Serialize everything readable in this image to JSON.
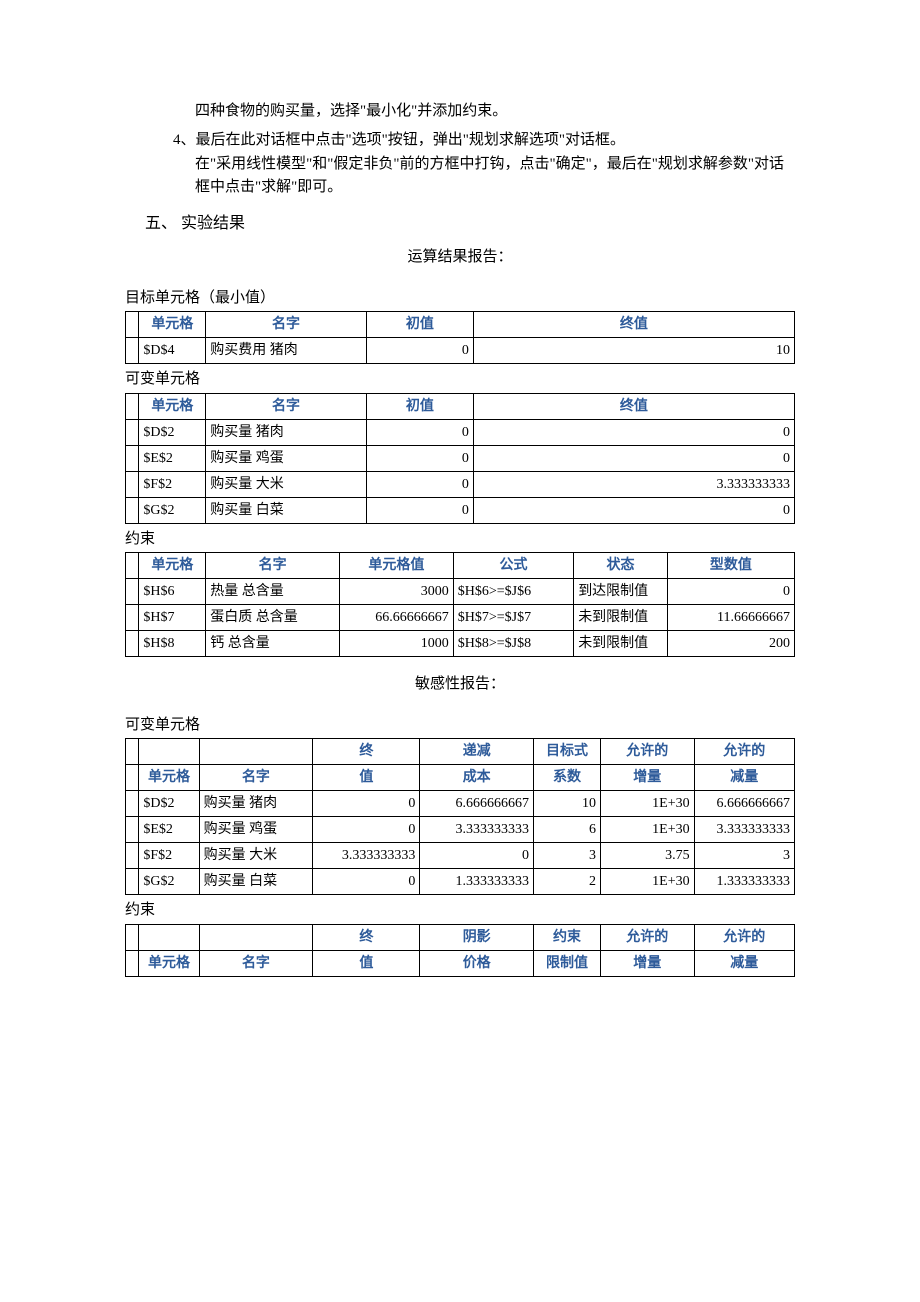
{
  "colors": {
    "header_text": "#2e5b9a",
    "border": "#000000",
    "body_text": "#000000",
    "background": "#ffffff"
  },
  "typography": {
    "body_family": "SimSun",
    "body_size_pt": 11,
    "header_bold": true
  },
  "intro": {
    "line1": "四种食物的购买量，选择\"最小化\"并添加约束。",
    "item4_a": "4、最后在此对话框中点击\"选项\"按钮，弹出\"规划求解选项\"对话框。",
    "item4_b": "在\"采用线性模型\"和\"假定非负\"前的方框中打钩，点击\"确定\"，最后在\"规划求解参数\"对话框中点击\"求解\"即可。"
  },
  "section5": "五、 实验结果",
  "report1_title": "运算结果报告：",
  "table1": {
    "caption": "目标单元格（最小值）",
    "headers": {
      "cell": "单元格",
      "name": "名字",
      "init": "初值",
      "final": "终值"
    },
    "col_widths_pct": [
      2,
      10,
      24,
      16,
      48
    ],
    "rows": [
      {
        "cell": "$D$4",
        "name": "购买费用 猪肉",
        "init": "0",
        "final": "10"
      }
    ]
  },
  "table2": {
    "caption": "可变单元格",
    "headers": {
      "cell": "单元格",
      "name": "名字",
      "init": "初值",
      "final": "终值"
    },
    "col_widths_pct": [
      2,
      10,
      24,
      16,
      48
    ],
    "rows": [
      {
        "cell": "$D$2",
        "name": "购买量 猪肉",
        "init": "0",
        "final": "0"
      },
      {
        "cell": "$E$2",
        "name": "购买量 鸡蛋",
        "init": "0",
        "final": "0"
      },
      {
        "cell": "$F$2",
        "name": "购买量 大米",
        "init": "0",
        "final": "3.333333333"
      },
      {
        "cell": "$G$2",
        "name": "购买量 白菜",
        "init": "0",
        "final": "0"
      }
    ]
  },
  "table3": {
    "caption": "约束",
    "headers": {
      "cell": "单元格",
      "name": "名字",
      "val": "单元格值",
      "formula": "公式",
      "status": "状态",
      "slack": "型数值"
    },
    "col_widths_pct": [
      2,
      10,
      20,
      17,
      18,
      14,
      19
    ],
    "rows": [
      {
        "cell": "$H$6",
        "name": "热量 总含量",
        "val": "3000",
        "formula": "$H$6>=$J$6",
        "status": "到达限制值",
        "slack": "0"
      },
      {
        "cell": "$H$7",
        "name": "蛋白质 总含量",
        "val": "66.66666667",
        "formula": "$H$7>=$J$7",
        "status": "未到限制值",
        "slack": "11.66666667"
      },
      {
        "cell": "$H$8",
        "name": "钙 总含量",
        "val": "1000",
        "formula": "$H$8>=$J$8",
        "status": "未到限制值",
        "slack": "200"
      }
    ]
  },
  "report2_title": "敏感性报告：",
  "table4": {
    "caption": "可变单元格",
    "headers_top": {
      "c3": "终",
      "c4": "递减",
      "c5": "目标式",
      "c6": "允许的",
      "c7": "允许的"
    },
    "headers_bot": {
      "cell": "单元格",
      "name": "名字",
      "c3": "值",
      "c4": "成本",
      "c5": "系数",
      "c6": "增量",
      "c7": "减量"
    },
    "col_widths_pct": [
      2,
      9,
      17,
      16,
      17,
      10,
      14,
      15
    ],
    "rows": [
      {
        "cell": "$D$2",
        "name": "购买量 猪肉",
        "c3": "0",
        "c4": "6.666666667",
        "c5": "10",
        "c6": "1E+30",
        "c7": "6.666666667"
      },
      {
        "cell": "$E$2",
        "name": "购买量 鸡蛋",
        "c3": "0",
        "c4": "3.333333333",
        "c5": "6",
        "c6": "1E+30",
        "c7": "3.333333333"
      },
      {
        "cell": "$F$2",
        "name": "购买量 大米",
        "c3": "3.333333333",
        "c4": "0",
        "c5": "3",
        "c6": "3.75",
        "c7": "3"
      },
      {
        "cell": "$G$2",
        "name": "购买量 白菜",
        "c3": "0",
        "c4": "1.333333333",
        "c5": "2",
        "c6": "1E+30",
        "c7": "1.333333333"
      }
    ]
  },
  "table5": {
    "caption": "约束",
    "headers_top": {
      "c3": "终",
      "c4": "阴影",
      "c5": "约束",
      "c6": "允许的",
      "c7": "允许的"
    },
    "headers_bot": {
      "cell": "单元格",
      "name": "名字",
      "c3": "值",
      "c4": "价格",
      "c5": "限制值",
      "c6": "增量",
      "c7": "减量"
    },
    "col_widths_pct": [
      2,
      9,
      17,
      16,
      17,
      10,
      14,
      15
    ]
  }
}
